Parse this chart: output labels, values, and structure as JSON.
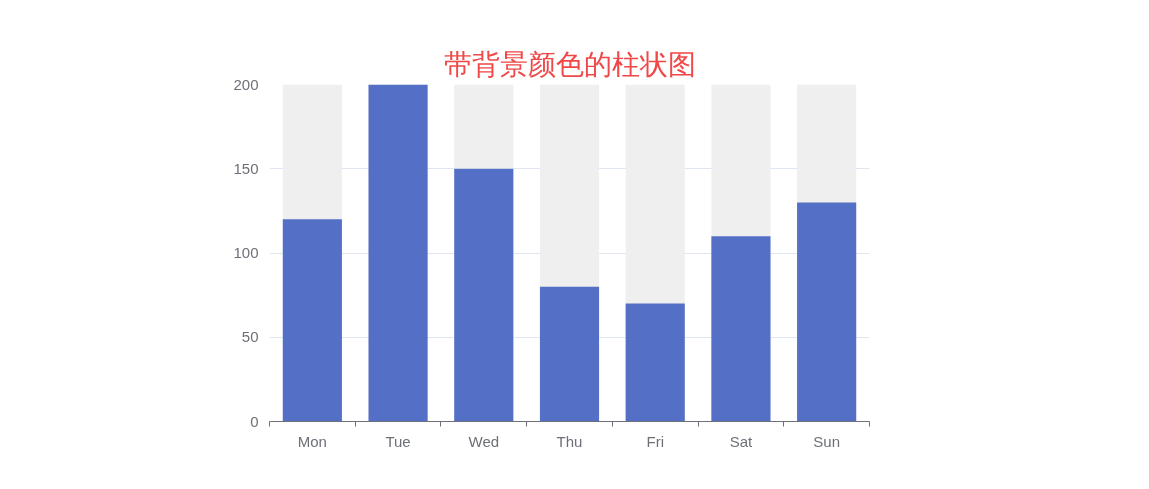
{
  "chart_data": {
    "type": "bar",
    "title": "带背景颜色的柱状图",
    "categories": [
      "Mon",
      "Tue",
      "Wed",
      "Thu",
      "Fri",
      "Sat",
      "Sun"
    ],
    "values": [
      120,
      200,
      150,
      80,
      70,
      110,
      130
    ],
    "color": "#5470c6",
    "ylim": [
      0,
      200
    ],
    "yticks": [
      0,
      50,
      100,
      150,
      200
    ],
    "grid": "y"
  }
}
